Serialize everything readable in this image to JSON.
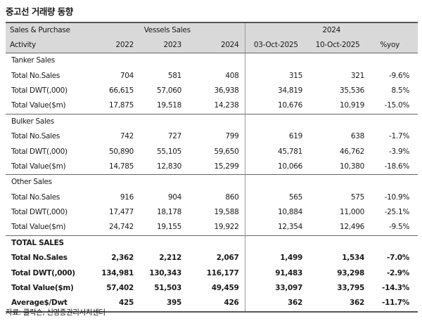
{
  "title": "중고선 거래량 동향",
  "header": {
    "row1": {
      "col1": "Sales & Purchase",
      "vessels_sales": "Vessels Sales",
      "year": "2024"
    },
    "row2": {
      "activity": "Activity",
      "y2022": "2022",
      "y2023": "2023",
      "y2024": "2024",
      "d1": "03-Oct-2025",
      "d2": "10-Oct-2025",
      "yoy": "%yoy"
    }
  },
  "sections": [
    {
      "name": "Tanker Sales",
      "rows": [
        {
          "label": "Total No.Sales",
          "v2022": "704",
          "v2023": "581",
          "v2024": "408",
          "d1": "315",
          "d2": "321",
          "yoy": "-9.6%"
        },
        {
          "label": "Total DWT(,000)",
          "v2022": "66,615",
          "v2023": "57,060",
          "v2024": "36,938",
          "d1": "34,819",
          "d2": "35,536",
          "yoy": "8.5%"
        },
        {
          "label": "Total Value($m)",
          "v2022": "17,875",
          "v2023": "19,518",
          "v2024": "14,238",
          "d1": "10,676",
          "d2": "10,919",
          "yoy": "-15.0%"
        }
      ]
    },
    {
      "name": "Bulker Sales",
      "rows": [
        {
          "label": "Total No.Sales",
          "v2022": "742",
          "v2023": "727",
          "v2024": "799",
          "d1": "619",
          "d2": "638",
          "yoy": "-1.7%"
        },
        {
          "label": "Total DWT(,000)",
          "v2022": "50,890",
          "v2023": "55,105",
          "v2024": "59,650",
          "d1": "45,781",
          "d2": "46,762",
          "yoy": "-3.9%"
        },
        {
          "label": "Total Value($m)",
          "v2022": "14,785",
          "v2023": "12,830",
          "v2024": "15,299",
          "d1": "10,066",
          "d2": "10,380",
          "yoy": "-18.6%"
        }
      ]
    },
    {
      "name": "Other Sales",
      "rows": [
        {
          "label": "Total No.Sales",
          "v2022": "916",
          "v2023": "904",
          "v2024": "860",
          "d1": "565",
          "d2": "575",
          "yoy": "-10.9%"
        },
        {
          "label": "Total DWT(,000)",
          "v2022": "17,477",
          "v2023": "18,178",
          "v2024": "19,588",
          "d1": "10,884",
          "d2": "11,000",
          "yoy": "-25.1%"
        },
        {
          "label": "Total Value($m)",
          "v2022": "24,742",
          "v2023": "19,155",
          "v2024": "19,922",
          "d1": "12,354",
          "d2": "12,496",
          "yoy": "-9.5%"
        }
      ]
    }
  ],
  "totals": {
    "name": "TOTAL SALES",
    "rows": [
      {
        "label": "Total No.Sales",
        "v2022": "2,362",
        "v2023": "2,212",
        "v2024": "2,067",
        "d1": "1,499",
        "d2": "1,534",
        "yoy": "-7.0%"
      },
      {
        "label": "Total DWT(,000)",
        "v2022": "134,981",
        "v2023": "130,343",
        "v2024": "116,177",
        "d1": "91,483",
        "d2": "93,298",
        "yoy": "-2.9%"
      },
      {
        "label": "Total Value($m)",
        "v2022": "57,402",
        "v2023": "51,503",
        "v2024": "49,459",
        "d1": "33,097",
        "d2": "33,795",
        "yoy": "-14.3%"
      }
    ],
    "average": {
      "label": "Average$/Dwt",
      "v2022": "425",
      "v2023": "395",
      "v2024": "426",
      "d1": "362",
      "d2": "362",
      "yoy": "-11.7%"
    }
  },
  "source": "자료: 클락슨, 신영증권리서치센터"
}
